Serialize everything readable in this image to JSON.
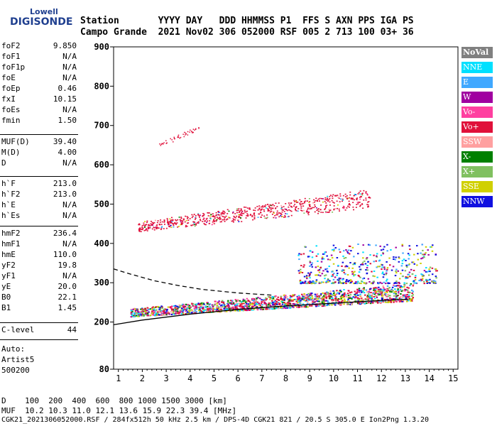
{
  "logo": {
    "line1": "Lowell",
    "line2": "DIGISONDE"
  },
  "header": {
    "labels": "Station       YYYY DAY   DDD HHMMSS P1  FFS S AXN PPS IGA PS",
    "values": "Campo Grande  2021 Nov02 306 052000 RSF 005 2 713 100 03+ 36"
  },
  "params": [
    [
      [
        "foF2",
        "9.850"
      ],
      [
        "foF1",
        "N/A"
      ],
      [
        "foF1p",
        "N/A"
      ],
      [
        "foE",
        "N/A"
      ],
      [
        "foEp",
        "0.46"
      ],
      [
        "fxI",
        "10.15"
      ],
      [
        "foEs",
        "N/A"
      ],
      [
        "fmin",
        "1.50"
      ]
    ],
    [
      [
        "MUF(D)",
        "39.40"
      ],
      [
        "M(D)",
        "4.00"
      ],
      [
        "D",
        "N/A"
      ]
    ],
    [
      [
        "h`F",
        "213.0"
      ],
      [
        "h`F2",
        "213.0"
      ],
      [
        "h`E",
        "N/A"
      ],
      [
        "h`Es",
        "N/A"
      ]
    ],
    [
      [
        "hmF2",
        "236.4"
      ],
      [
        "hmF1",
        "N/A"
      ],
      [
        "hmE",
        "110.0"
      ],
      [
        "yF2",
        "19.8"
      ],
      [
        "yF1",
        "N/A"
      ],
      [
        "yE",
        "20.0"
      ],
      [
        "B0",
        "22.1"
      ],
      [
        "B1",
        "1.45"
      ]
    ],
    [
      [
        "C-level",
        "44"
      ]
    ]
  ],
  "auto": {
    "l1": "Auto:",
    "l2": "Artist5",
    "l3": "500200"
  },
  "legend": [
    {
      "label": "NoVal",
      "color": "#808080"
    },
    {
      "label": "NNE",
      "color": "#00e0ff"
    },
    {
      "label": "E",
      "color": "#40a8ff"
    },
    {
      "label": "W",
      "color": "#a000a0"
    },
    {
      "label": "Vo-",
      "color": "#ff3fa0"
    },
    {
      "label": "Vo+",
      "color": "#e0103a"
    },
    {
      "label": "SSW",
      "color": "#ffa0a0"
    },
    {
      "label": "X-",
      "color": "#008000"
    },
    {
      "label": "X+",
      "color": "#80c060"
    },
    {
      "label": "SSE",
      "color": "#d0d000"
    },
    {
      "label": "NNW",
      "color": "#1010e0"
    }
  ],
  "footer": {
    "d": "D    100  200  400  600  800 1000 1500 3000 [km]",
    "muf": "MUF  10.2 10.3 11.0 12.1 13.6 15.9 22.3 39.4 [MHz]",
    "file": "CGK21_2021306052000.RSF / 284fx512h 50 kHz 2.5 km / DPS-4D CGK21 821 / 20.5 S 305.0 E Ion2Png 1.3.20"
  },
  "chart_data": {
    "type": "scatter",
    "xlabel": "",
    "ylabel": "",
    "xlim": [
      0.8,
      15.2
    ],
    "ylim": [
      80,
      900
    ],
    "xticks": [
      1,
      2,
      3,
      4,
      5,
      6,
      7,
      8,
      9,
      10,
      11,
      12,
      13,
      14,
      15
    ],
    "yticks": [
      80,
      200,
      300,
      400,
      500,
      600,
      700,
      800,
      900
    ],
    "curves": [
      {
        "name": "profile",
        "style": "solid",
        "color": "#000000",
        "points": [
          [
            0.8,
            193
          ],
          [
            2,
            205
          ],
          [
            4,
            220
          ],
          [
            6,
            232
          ],
          [
            8,
            241
          ],
          [
            10,
            248
          ],
          [
            12,
            255
          ],
          [
            13.1,
            258
          ]
        ]
      },
      {
        "name": "o-trace",
        "style": "dashed",
        "color": "#000000",
        "points": [
          [
            0.8,
            335
          ],
          [
            1.5,
            322
          ],
          [
            2.5,
            305
          ],
          [
            3.5,
            293
          ],
          [
            4.5,
            283
          ],
          [
            6,
            274
          ],
          [
            7.5,
            268
          ]
        ]
      }
    ],
    "traces": [
      {
        "region": "F2 echo band",
        "x": [
          1.5,
          13.3
        ],
        "y_start": [
          215,
          235
        ],
        "y_end": [
          255,
          300
        ],
        "dominant": "Vo+"
      },
      {
        "region": "multiple-hop band",
        "x": [
          1.8,
          11.5
        ],
        "y_start": [
          430,
          455
        ],
        "y_end": [
          490,
          540
        ],
        "dominant": "Vo+"
      },
      {
        "region": "high echoes",
        "x": [
          2.7,
          4.5
        ],
        "y": [
          650,
          700
        ],
        "dominant": "Vo+"
      },
      {
        "region": "spread F",
        "x": [
          8.5,
          14.3
        ],
        "y": [
          300,
          400
        ],
        "dominant": "NNW"
      }
    ]
  }
}
